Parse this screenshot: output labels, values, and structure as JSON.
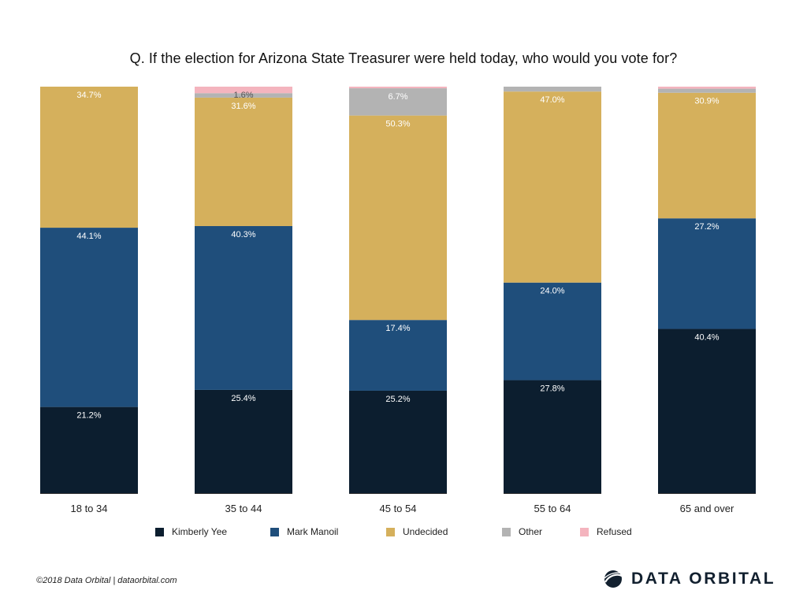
{
  "chart_data": {
    "type": "bar",
    "stacked": true,
    "title": "Q. If the election for Arizona State Treasurer were held today, who would you vote for?",
    "categories": [
      "18 to 34",
      "35 to 44",
      "45 to 54",
      "55 to 64",
      "65 and over"
    ],
    "series": [
      {
        "name": "Kimberly Yee",
        "color": "#0c1e2f",
        "values": [
          21.2,
          25.4,
          25.2,
          27.8,
          40.4
        ],
        "labels": [
          "21.2%",
          "25.4%",
          "25.2%",
          "27.8%",
          "40.4%"
        ]
      },
      {
        "name": "Mark Manoil",
        "color": "#1f4e7b",
        "values": [
          44.1,
          40.3,
          17.4,
          24.0,
          27.2
        ],
        "labels": [
          "44.1%",
          "40.3%",
          "17.4%",
          "24.0%",
          "27.2%"
        ]
      },
      {
        "name": "Undecided",
        "color": "#d5b05c",
        "values": [
          34.7,
          31.6,
          50.3,
          47.0,
          30.9
        ],
        "labels": [
          "34.7%",
          "31.6%",
          "50.3%",
          "47.0%",
          "30.9%"
        ]
      },
      {
        "name": "Other",
        "color": "#b3b3b3",
        "values": [
          0.0,
          1.1,
          6.7,
          1.2,
          1.0
        ],
        "labels": [
          "",
          "",
          "6.7%",
          "",
          ""
        ]
      },
      {
        "name": "Refused",
        "color": "#f4b4be",
        "values": [
          0.0,
          1.6,
          0.4,
          0.0,
          0.5
        ],
        "labels": [
          "",
          "1.6%",
          "",
          "",
          ""
        ]
      }
    ],
    "ylim": [
      0,
      100
    ],
    "xlabel": "",
    "ylabel": "",
    "legend": "bottom"
  },
  "footer": {
    "credit": "©2018 Data Orbital | dataorbital.com",
    "brand": "DATA ORBITAL"
  }
}
